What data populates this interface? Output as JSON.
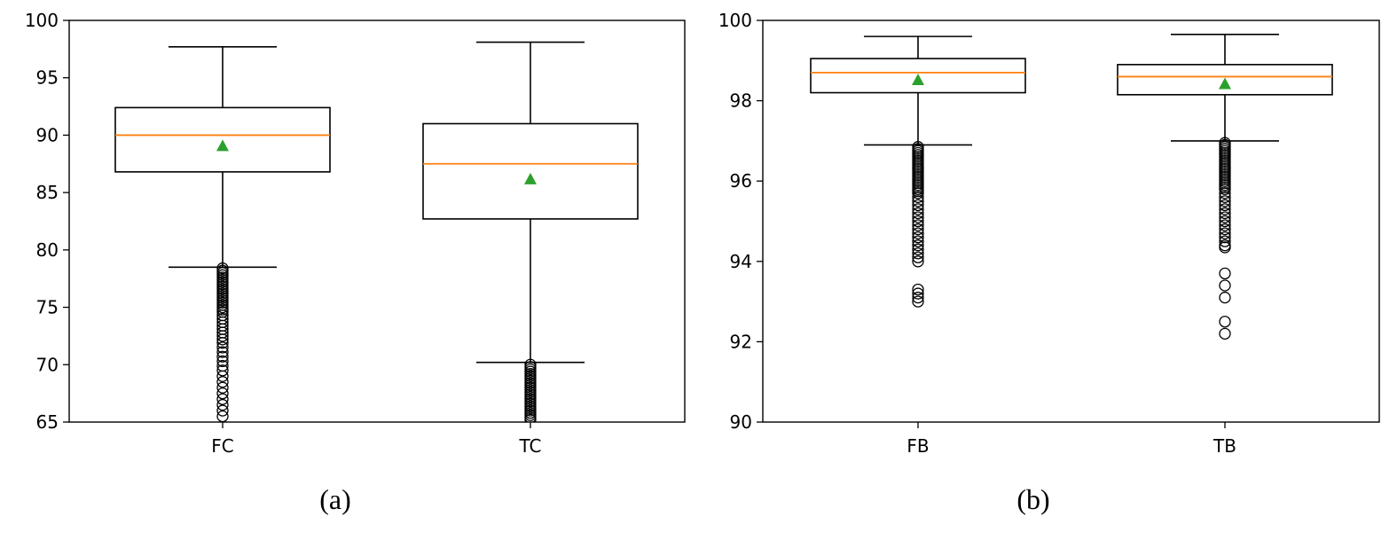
{
  "chart_data": [
    {
      "type": "box",
      "caption": "(a)",
      "ylim": [
        65,
        100
      ],
      "yticks": [
        "65",
        "70",
        "75",
        "80",
        "85",
        "90",
        "95",
        "100"
      ],
      "categories": [
        "FC",
        "TC"
      ],
      "boxes": [
        {
          "label": "FC",
          "whisker_low": 78.5,
          "q1": 86.8,
          "median": 90.0,
          "q3": 92.4,
          "whisker_high": 97.7,
          "mean": 89.0,
          "outliers": [
            78.4,
            78.2,
            78.0,
            77.8,
            77.6,
            77.4,
            77.2,
            77.0,
            76.8,
            76.6,
            76.4,
            76.2,
            76.0,
            75.8,
            75.6,
            75.4,
            75.2,
            75.0,
            74.8,
            74.6,
            74.3,
            74.0,
            73.7,
            73.4,
            73.1,
            72.8,
            72.5,
            72.2,
            71.9,
            71.5,
            71.1,
            70.7,
            70.3,
            69.9,
            69.5,
            69.0,
            68.5,
            68.0,
            67.5,
            67.0,
            66.5,
            66.0,
            65.5
          ]
        },
        {
          "label": "TC",
          "whisker_low": 70.2,
          "q1": 82.7,
          "median": 87.5,
          "q3": 91.0,
          "whisker_high": 98.1,
          "mean": 86.1,
          "outliers": [
            70.0,
            69.8,
            69.6,
            69.4,
            69.2,
            69.0,
            68.8,
            68.6,
            68.4,
            68.2,
            68.0,
            67.8,
            67.6,
            67.4,
            67.2,
            67.0,
            66.8,
            66.6,
            66.4,
            66.2,
            66.0,
            65.8,
            65.6,
            65.4,
            65.2
          ]
        }
      ],
      "colors": {
        "median": "#ff7f0e",
        "mean": "#2ca02c",
        "box": "#000000"
      }
    },
    {
      "type": "box",
      "caption": "(b)",
      "ylim": [
        90,
        100
      ],
      "yticks": [
        "90",
        "92",
        "94",
        "96",
        "98",
        "100"
      ],
      "categories": [
        "FB",
        "TB"
      ],
      "boxes": [
        {
          "label": "FB",
          "whisker_low": 96.9,
          "q1": 98.2,
          "median": 98.7,
          "q3": 99.05,
          "whisker_high": 99.6,
          "mean": 98.5,
          "outliers": [
            96.85,
            96.8,
            96.75,
            96.7,
            96.65,
            96.6,
            96.55,
            96.5,
            96.45,
            96.4,
            96.35,
            96.3,
            96.25,
            96.2,
            96.15,
            96.1,
            96.05,
            96.0,
            95.95,
            95.9,
            95.85,
            95.8,
            95.75,
            95.7,
            95.6,
            95.5,
            95.4,
            95.3,
            95.2,
            95.1,
            95.0,
            94.9,
            94.8,
            94.7,
            94.6,
            94.5,
            94.4,
            94.3,
            94.2,
            94.1,
            94.0,
            93.3,
            93.2,
            93.1,
            93.0
          ]
        },
        {
          "label": "TB",
          "whisker_low": 97.0,
          "q1": 98.15,
          "median": 98.6,
          "q3": 98.9,
          "whisker_high": 99.65,
          "mean": 98.4,
          "outliers": [
            96.95,
            96.9,
            96.85,
            96.8,
            96.75,
            96.7,
            96.65,
            96.6,
            96.55,
            96.5,
            96.45,
            96.4,
            96.35,
            96.3,
            96.25,
            96.2,
            96.15,
            96.1,
            96.05,
            96.0,
            95.95,
            95.9,
            95.85,
            95.8,
            95.7,
            95.6,
            95.5,
            95.4,
            95.3,
            95.2,
            95.1,
            95.0,
            94.9,
            94.8,
            94.7,
            94.6,
            94.5,
            94.4,
            94.35,
            93.7,
            93.4,
            93.1,
            92.5,
            92.2
          ]
        }
      ],
      "colors": {
        "median": "#ff7f0e",
        "mean": "#2ca02c",
        "box": "#000000"
      }
    }
  ]
}
